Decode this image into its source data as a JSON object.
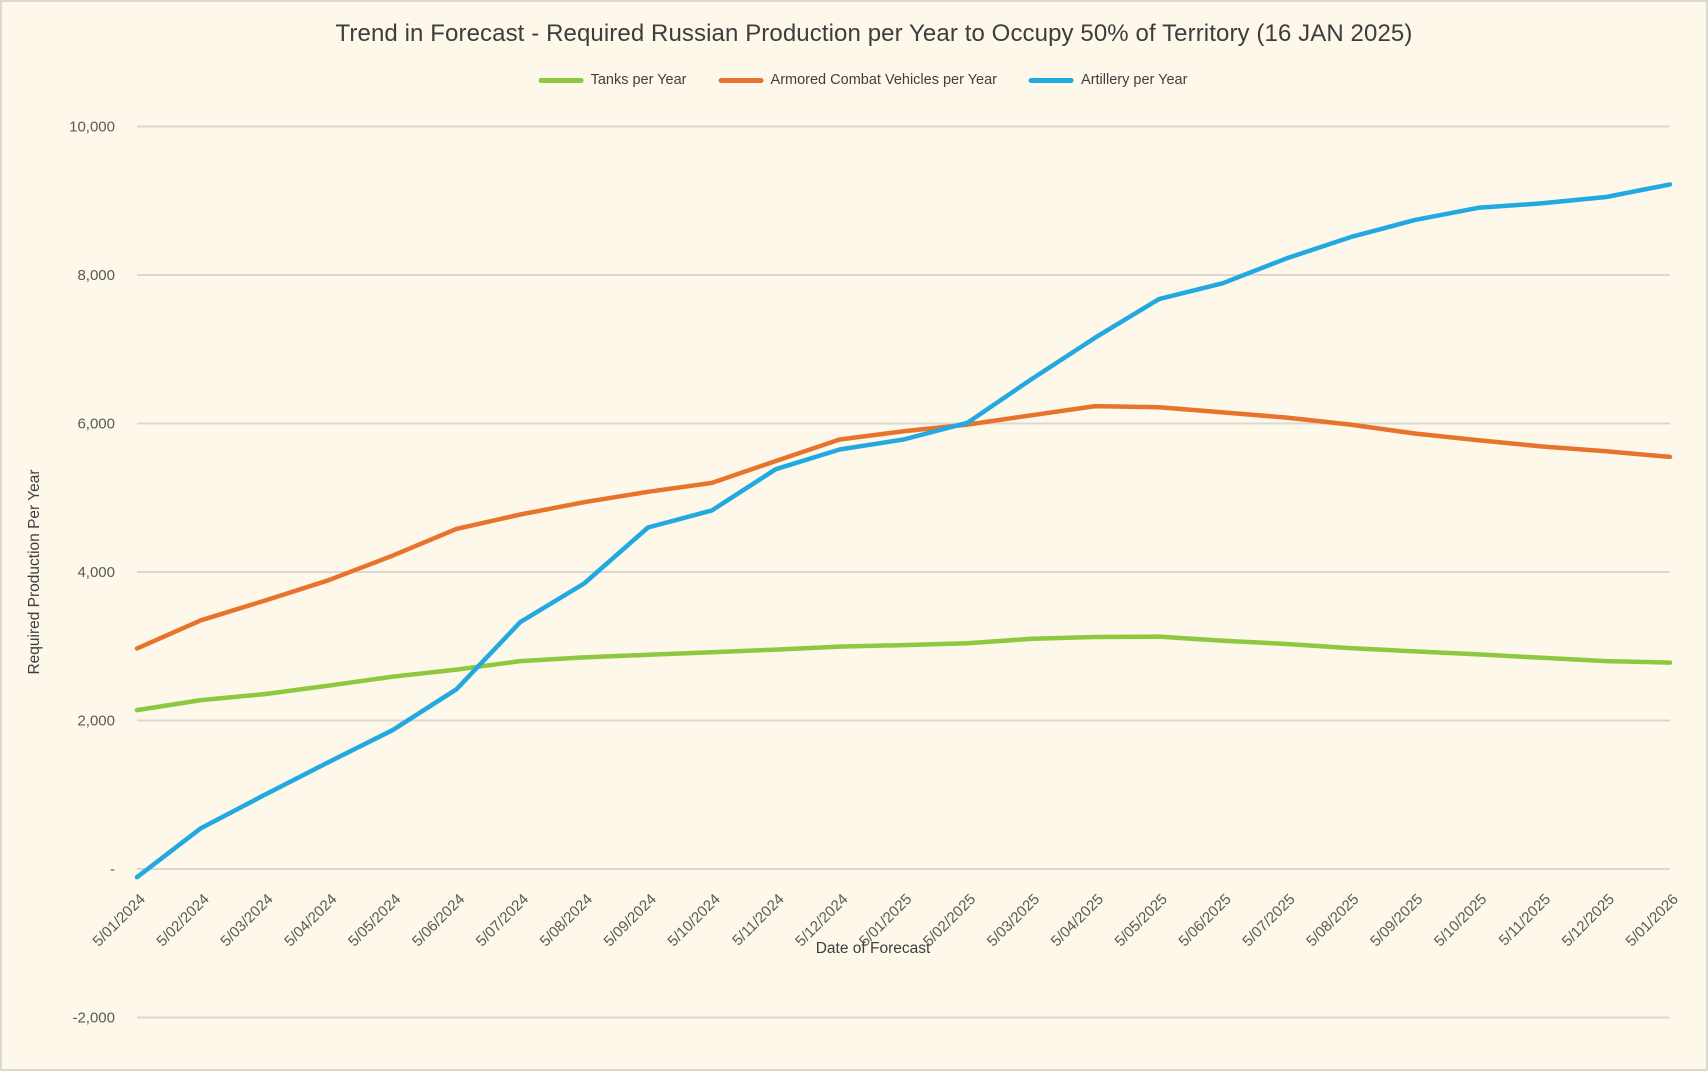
{
  "title": "Trend in Forecast - Required Russian Production per Year to Occupy 50% of Territory (16 JAN 2025)",
  "y_axis": {
    "title": "Required Production Per Year",
    "ticks": [
      {
        "value": 10000,
        "label": "10,000"
      },
      {
        "value": 8000,
        "label": "8,000"
      },
      {
        "value": 6000,
        "label": "6,000"
      },
      {
        "value": 4000,
        "label": "4,000"
      },
      {
        "value": 2000,
        "label": "2,000"
      },
      {
        "value": 0,
        "label": "-"
      },
      {
        "value": -2000,
        "label": "-2,000"
      }
    ]
  },
  "x_axis": {
    "title": "Date of Forecast"
  },
  "colors": {
    "background": "#FDF8E9",
    "gridline": "#D9D8D1",
    "tick_label": "#595959",
    "title_text": "#3D3D3D",
    "border": "#DBD8D0"
  },
  "chart_data": {
    "type": "line",
    "title": "Trend in Forecast - Required Russian Production per Year to Occupy 50% of Territory (16 JAN 2025)",
    "xlabel": "Date of Forecast",
    "ylabel": "Required Production Per Year",
    "ylim": [
      -2000,
      10000
    ],
    "ytick_step": 2000,
    "grid": true,
    "legend_position": "top",
    "x": [
      "5/01/2024",
      "5/02/2024",
      "5/03/2024",
      "5/04/2024",
      "5/05/2024",
      "5/06/2024",
      "5/07/2024",
      "5/08/2024",
      "5/09/2024",
      "5/10/2024",
      "5/11/2024",
      "5/12/2024",
      "5/01/2025",
      "5/02/2025",
      "5/03/2025",
      "5/04/2025",
      "5/05/2025",
      "5/06/2025",
      "5/07/2025",
      "5/08/2025",
      "5/09/2025",
      "5/10/2025",
      "5/11/2025",
      "5/12/2025",
      "5/01/2026"
    ],
    "series": [
      {
        "name": "Tanks per Year",
        "color": "#8DC841",
        "values": [
          2140,
          2275,
          2355,
          2470,
          2590,
          2685,
          2800,
          2850,
          2885,
          2920,
          2955,
          2995,
          3015,
          3040,
          3100,
          3125,
          3130,
          3075,
          3030,
          2975,
          2930,
          2890,
          2845,
          2800,
          2780
        ]
      },
      {
        "name": "Armored Combat Vehicles per Year",
        "color": "#E8732C",
        "values": [
          2970,
          3350,
          3615,
          3890,
          4220,
          4580,
          4775,
          4940,
          5080,
          5200,
          5495,
          5785,
          5895,
          5985,
          6110,
          6235,
          6220,
          6150,
          6080,
          5985,
          5865,
          5775,
          5690,
          5625,
          5550
        ]
      },
      {
        "name": "Artillery per Year",
        "color": "#22A9E2",
        "values": [
          -110,
          550,
          1000,
          1440,
          1870,
          2420,
          3325,
          3845,
          4600,
          4830,
          5385,
          5650,
          5785,
          6010,
          6595,
          7155,
          7675,
          7890,
          8225,
          8510,
          8740,
          8905,
          8965,
          9050,
          9220
        ]
      }
    ]
  }
}
